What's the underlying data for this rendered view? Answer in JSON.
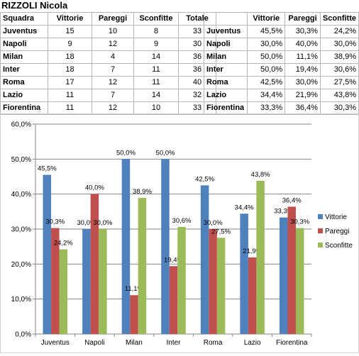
{
  "sheet": {
    "title": "RIZZOLI Nicola",
    "table1": {
      "headers": [
        "Squadra",
        "Vittorie",
        "Pareggi",
        "Sconfitte",
        "Totale"
      ],
      "rows": [
        [
          "Juventus",
          "15",
          "10",
          "8",
          "33"
        ],
        [
          "Napoli",
          "9",
          "12",
          "9",
          "30"
        ],
        [
          "Milan",
          "18",
          "4",
          "14",
          "36"
        ],
        [
          "Inter",
          "18",
          "7",
          "11",
          "36"
        ],
        [
          "Roma",
          "17",
          "12",
          "11",
          "40"
        ],
        [
          "Lazio",
          "11",
          "7",
          "14",
          "32"
        ],
        [
          "Fiorentina",
          "11",
          "12",
          "10",
          "33"
        ]
      ]
    },
    "table2": {
      "headers": [
        "",
        "Vittorie",
        "Pareggi",
        "Sconfitte"
      ],
      "rows": [
        [
          "Juventus",
          "45,5%",
          "30,3%",
          "24,2%"
        ],
        [
          "Napoli",
          "30,0%",
          "40,0%",
          "30,0%"
        ],
        [
          "Milan",
          "50,0%",
          "11,1%",
          "38,9%"
        ],
        [
          "Inter",
          "50,0%",
          "19,4%",
          "30,6%"
        ],
        [
          "Roma",
          "42,5%",
          "30,0%",
          "27,5%"
        ],
        [
          "Lazio",
          "34,4%",
          "21,9%",
          "43,8%"
        ],
        [
          "Fiorentina",
          "33,3%",
          "36,4%",
          "30,3%"
        ]
      ]
    }
  },
  "chart_data": {
    "type": "bar",
    "categories": [
      "Juventus",
      "Napoli",
      "Milan",
      "Inter",
      "Roma",
      "Lazio",
      "Fiorentina"
    ],
    "series": [
      {
        "name": "Vittorie",
        "color": "#4f81bd",
        "values": [
          45.5,
          30.0,
          50.0,
          50.0,
          42.5,
          34.4,
          33.3
        ],
        "labels": [
          "45,5%",
          "30,0%",
          "50,0%",
          "50,0%",
          "42,5%",
          "34,4%",
          "33,3%"
        ]
      },
      {
        "name": "Pareggi",
        "color": "#c0504d",
        "values": [
          30.3,
          40.0,
          11.1,
          19.4,
          30.0,
          21.9,
          36.4
        ],
        "labels": [
          "30,3%",
          "40,0%",
          "11,1%",
          "19,4%",
          "30,0%",
          "21,9%",
          "36,4%"
        ]
      },
      {
        "name": "Sconfitte",
        "color": "#9bbb59",
        "values": [
          24.2,
          30.0,
          38.9,
          30.6,
          27.5,
          43.8,
          30.3
        ],
        "labels": [
          "24,2%",
          "30,0%",
          "38,9%",
          "30,6%",
          "27,5%",
          "43,8%",
          "30,3%"
        ]
      }
    ],
    "ylim": [
      0,
      60
    ],
    "yticks": [
      "0,0%",
      "10,0%",
      "20,0%",
      "30,0%",
      "40,0%",
      "50,0%",
      "60,0%"
    ],
    "grid": true,
    "legend": "right"
  }
}
